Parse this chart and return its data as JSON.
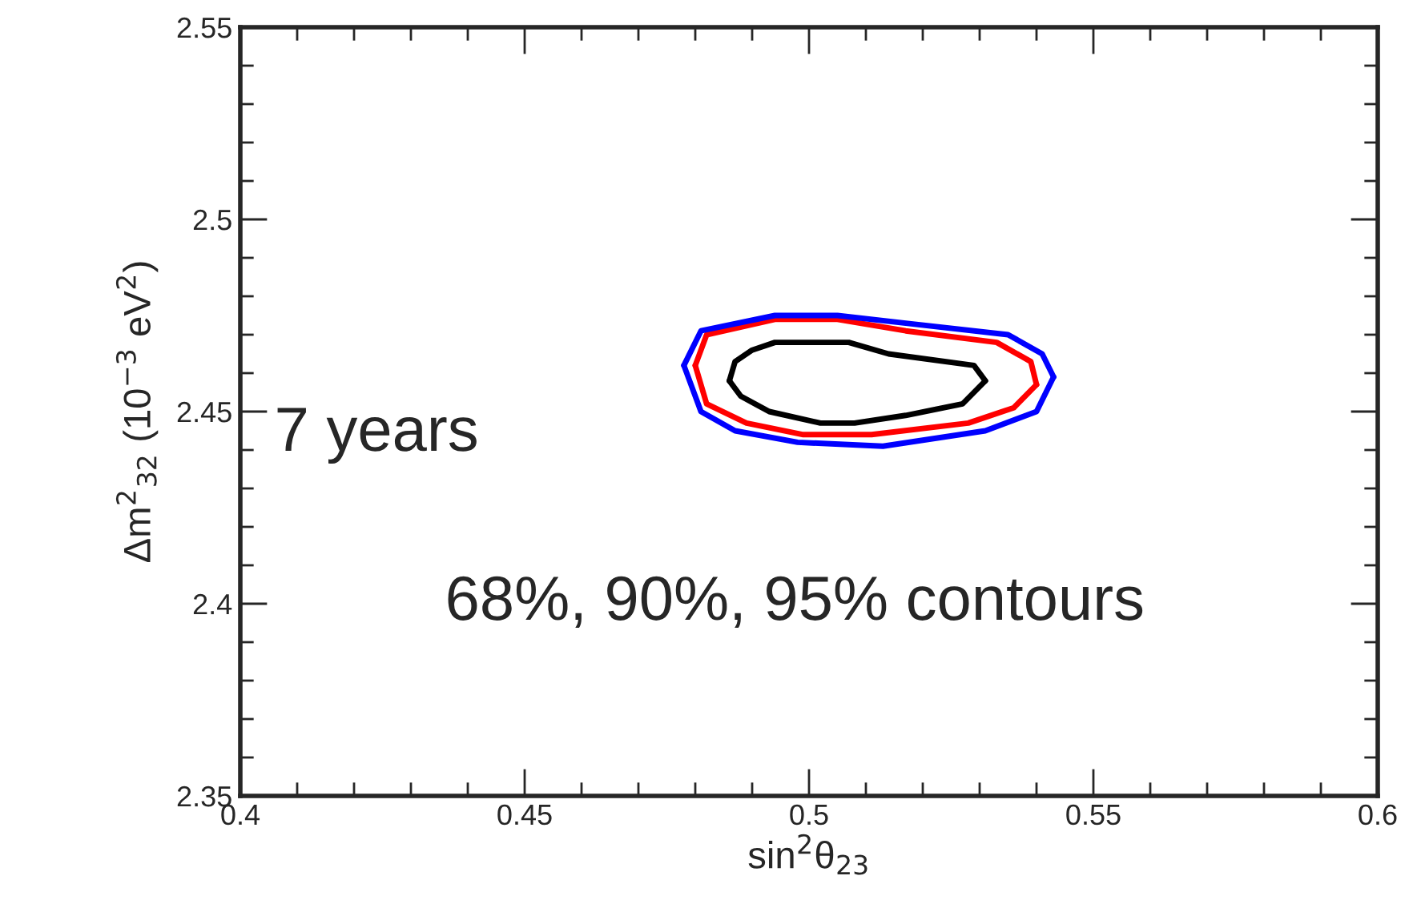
{
  "chart_data": {
    "type": "line",
    "xlabel": "sin$^{2}$θ$_{23}$",
    "ylabel": "Δm$^{2}$$_{32}$ (10$^{−3}$ eV$^{2}$)",
    "annotations": [
      "7 years",
      "68%, 90%, 95% contours"
    ],
    "xlim": [
      0.4,
      0.6
    ],
    "xticks": [
      0.4,
      0.45,
      0.5,
      0.55,
      0.6
    ],
    "ylim": [
      2.35,
      2.55
    ],
    "yticks": [
      2.35,
      2.4,
      2.45,
      2.5,
      2.55
    ],
    "series": [
      {
        "color": "#000000",
        "x": [
          0.486,
          0.487,
          0.49,
          0.494,
          0.507,
          0.514,
          0.529,
          0.531
        ],
        "values": [
          2.458,
          2.463,
          2.466,
          2.468,
          2.468,
          2.465,
          2.462,
          2.458
        ]
      },
      {
        "color": "#000000",
        "x": [
          0.486,
          0.488,
          0.493,
          0.502,
          0.508,
          0.517,
          0.527,
          0.531
        ],
        "values": [
          2.458,
          2.454,
          2.45,
          2.447,
          2.447,
          2.449,
          2.452,
          2.458
        ]
      },
      {
        "color": "#ff0000",
        "x": [
          0.48,
          0.482,
          0.494,
          0.505,
          0.517,
          0.533,
          0.539,
          0.54
        ],
        "values": [
          2.462,
          2.47,
          2.474,
          2.474,
          2.471,
          2.468,
          2.463,
          2.457
        ]
      },
      {
        "color": "#ff0000",
        "x": [
          0.48,
          0.482,
          0.489,
          0.499,
          0.511,
          0.528,
          0.536,
          0.54
        ],
        "values": [
          2.462,
          2.452,
          2.447,
          2.444,
          2.444,
          2.447,
          2.451,
          2.457
        ]
      },
      {
        "color": "#0000ff",
        "x": [
          0.478,
          0.481,
          0.494,
          0.505,
          0.517,
          0.535,
          0.541,
          0.543
        ],
        "values": [
          2.462,
          2.471,
          2.475,
          2.475,
          2.473,
          2.47,
          2.465,
          2.459
        ]
      },
      {
        "color": "#0000ff",
        "x": [
          0.478,
          0.481,
          0.487,
          0.498,
          0.513,
          0.531,
          0.54,
          0.543
        ],
        "values": [
          2.462,
          2.45,
          2.445,
          2.442,
          2.441,
          2.445,
          2.45,
          2.459
        ]
      }
    ]
  }
}
